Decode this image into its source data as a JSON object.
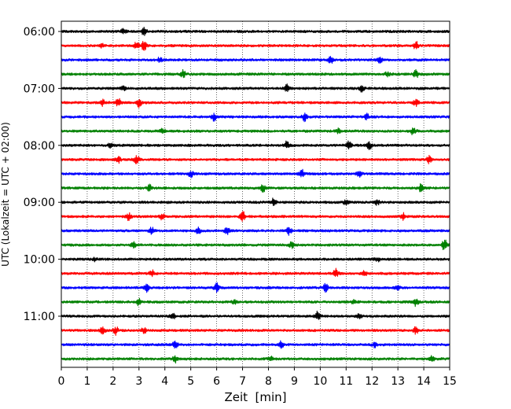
{
  "chart_data": {
    "type": "line",
    "title": "",
    "xlabel": "Zeit  [min]",
    "ylabel": "UTC (Lokalzeit = UTC + 02:00)",
    "xlim": [
      0,
      15
    ],
    "x_ticks": [
      "0",
      "1",
      "2",
      "3",
      "4",
      "5",
      "6",
      "7",
      "8",
      "9",
      "10",
      "11",
      "12",
      "13",
      "14",
      "15"
    ],
    "y_tick_labels": [
      "06:00",
      "07:00",
      "08:00",
      "09:00",
      "10:00",
      "11:00"
    ],
    "grid": "vertical dotted lines at each minute",
    "trace_interval_minutes": 15,
    "color_cycle": [
      "#000000",
      "#ff0000",
      "#0000ff",
      "#008000"
    ],
    "series": [
      {
        "start": "06:00",
        "events": [
          [
            3.2,
            0.5
          ],
          [
            2.4,
            0.35
          ]
        ]
      },
      {
        "start": "06:15",
        "events": [
          [
            3.2,
            0.7
          ],
          [
            2.9,
            0.5
          ],
          [
            13.7,
            0.5
          ],
          [
            1.6,
            0.3
          ]
        ]
      },
      {
        "start": "06:30",
        "events": [
          [
            10.4,
            0.6
          ],
          [
            12.3,
            0.4
          ],
          [
            3.8,
            0.3
          ]
        ]
      },
      {
        "start": "06:45",
        "events": [
          [
            4.7,
            0.5
          ],
          [
            13.7,
            0.5
          ],
          [
            12.6,
            0.3
          ]
        ]
      },
      {
        "start": "07:00",
        "events": [
          [
            8.7,
            0.5
          ],
          [
            11.6,
            0.5
          ],
          [
            2.4,
            0.3
          ]
        ]
      },
      {
        "start": "07:15",
        "events": [
          [
            1.6,
            0.4
          ],
          [
            2.2,
            0.55
          ],
          [
            3.0,
            0.6
          ],
          [
            13.7,
            0.5
          ]
        ]
      },
      {
        "start": "07:30",
        "events": [
          [
            5.9,
            0.55
          ],
          [
            9.4,
            0.55
          ],
          [
            11.8,
            0.4
          ]
        ]
      },
      {
        "start": "07:45",
        "events": [
          [
            3.9,
            0.45
          ],
          [
            13.6,
            0.55
          ],
          [
            10.7,
            0.3
          ]
        ]
      },
      {
        "start": "08:00",
        "events": [
          [
            8.7,
            0.5
          ],
          [
            11.1,
            0.5
          ],
          [
            11.9,
            0.5
          ],
          [
            1.9,
            0.3
          ]
        ]
      },
      {
        "start": "08:15",
        "events": [
          [
            2.2,
            0.45
          ],
          [
            2.9,
            0.6
          ],
          [
            14.2,
            0.45
          ]
        ]
      },
      {
        "start": "08:30",
        "events": [
          [
            5.0,
            0.5
          ],
          [
            9.3,
            0.5
          ],
          [
            11.5,
            0.4
          ]
        ]
      },
      {
        "start": "08:45",
        "events": [
          [
            3.4,
            0.45
          ],
          [
            7.8,
            0.55
          ],
          [
            13.9,
            0.55
          ]
        ]
      },
      {
        "start": "09:00",
        "events": [
          [
            8.2,
            0.5
          ],
          [
            11.0,
            0.35
          ],
          [
            12.2,
            0.3
          ]
        ]
      },
      {
        "start": "09:15",
        "events": [
          [
            2.6,
            0.45
          ],
          [
            3.9,
            0.4
          ],
          [
            7.0,
            0.75
          ],
          [
            13.2,
            0.5
          ]
        ]
      },
      {
        "start": "09:30",
        "events": [
          [
            3.5,
            0.45
          ],
          [
            5.3,
            0.45
          ],
          [
            6.4,
            0.5
          ],
          [
            8.8,
            0.55
          ]
        ]
      },
      {
        "start": "09:45",
        "events": [
          [
            2.8,
            0.45
          ],
          [
            8.9,
            0.4
          ],
          [
            14.8,
            0.75
          ]
        ]
      },
      {
        "start": "10:00",
        "events": [
          [
            1.3,
            0.3
          ],
          [
            12.2,
            0.3
          ]
        ]
      },
      {
        "start": "10:15",
        "events": [
          [
            3.5,
            0.45
          ],
          [
            10.6,
            0.6
          ],
          [
            11.7,
            0.4
          ]
        ]
      },
      {
        "start": "10:30",
        "events": [
          [
            3.3,
            0.5
          ],
          [
            6.0,
            0.6
          ],
          [
            10.2,
            0.55
          ],
          [
            13.0,
            0.4
          ]
        ]
      },
      {
        "start": "10:45",
        "events": [
          [
            3.0,
            0.45
          ],
          [
            6.7,
            0.3
          ],
          [
            13.7,
            0.55
          ],
          [
            11.3,
            0.3
          ]
        ]
      },
      {
        "start": "11:00",
        "events": [
          [
            4.3,
            0.45
          ],
          [
            9.9,
            0.65
          ],
          [
            11.5,
            0.35
          ]
        ]
      },
      {
        "start": "11:15",
        "events": [
          [
            1.6,
            0.5
          ],
          [
            2.1,
            0.55
          ],
          [
            3.2,
            0.45
          ],
          [
            13.7,
            0.5
          ]
        ]
      },
      {
        "start": "11:30",
        "events": [
          [
            4.4,
            0.6
          ],
          [
            8.5,
            0.45
          ],
          [
            12.1,
            0.3
          ]
        ]
      },
      {
        "start": "11:45",
        "events": [
          [
            4.4,
            0.5
          ],
          [
            14.3,
            0.35
          ],
          [
            8.1,
            0.3
          ]
        ]
      }
    ]
  }
}
